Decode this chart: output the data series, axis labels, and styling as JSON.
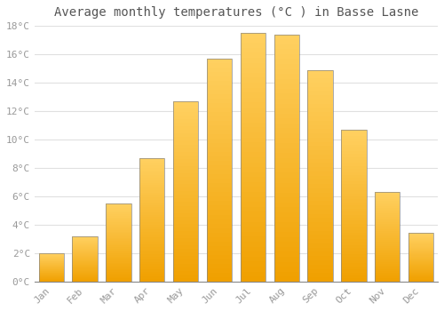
{
  "months": [
    "Jan",
    "Feb",
    "Mar",
    "Apr",
    "May",
    "Jun",
    "Jul",
    "Aug",
    "Sep",
    "Oct",
    "Nov",
    "Dec"
  ],
  "values": [
    2.0,
    3.2,
    5.5,
    8.7,
    12.7,
    15.7,
    17.5,
    17.4,
    14.9,
    10.7,
    6.3,
    3.4
  ],
  "bar_color_main": "#FFA500",
  "bar_color_light": "#FFD050",
  "bar_edge_color": "#888888",
  "title": "Average monthly temperatures (°C ) in Basse Lasne",
  "title_fontsize": 10,
  "ylim": [
    0,
    18
  ],
  "yticks": [
    0,
    2,
    4,
    6,
    8,
    10,
    12,
    14,
    16,
    18
  ],
  "ytick_labels": [
    "0°C",
    "2°C",
    "4°C",
    "6°C",
    "8°C",
    "10°C",
    "12°C",
    "14°C",
    "16°C",
    "18°C"
  ],
  "background_color": "#ffffff",
  "grid_color": "#e0e0e0",
  "tick_label_color": "#999999",
  "title_color": "#555555",
  "font_family": "monospace",
  "bar_width": 0.75
}
